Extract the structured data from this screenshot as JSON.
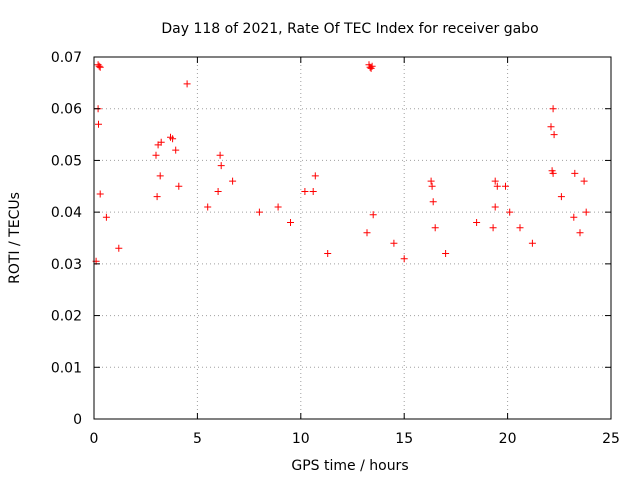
{
  "chart_data": {
    "type": "scatter",
    "title": "Day 118 of 2021, Rate Of TEC Index for receiver gabo",
    "xlabel": "GPS time / hours",
    "ylabel": "ROTI / TECUs",
    "xlim": [
      0,
      25
    ],
    "ylim": [
      0,
      0.07
    ],
    "xticks": [
      0,
      5,
      10,
      15,
      20,
      25
    ],
    "yticks": [
      0,
      0.01,
      0.02,
      0.03,
      0.04,
      0.05,
      0.06,
      0.07
    ],
    "xtick_labels": [
      "0",
      "5",
      "10",
      "15",
      "20",
      "25"
    ],
    "ytick_labels": [
      "0",
      "0.01",
      "0.02",
      "0.03",
      "0.04",
      "0.05",
      "0.06",
      "0.07"
    ],
    "grid": true,
    "marker": "+",
    "series_color": "#ff0000",
    "series": [
      {
        "name": "ROTI",
        "points": [
          [
            0.2,
            0.0685
          ],
          [
            0.25,
            0.0682
          ],
          [
            0.3,
            0.068
          ],
          [
            0.2,
            0.06
          ],
          [
            0.22,
            0.057
          ],
          [
            0.3,
            0.0435
          ],
          [
            0.1,
            0.0305
          ],
          [
            0.6,
            0.039
          ],
          [
            1.2,
            0.033
          ],
          [
            3.0,
            0.051
          ],
          [
            3.1,
            0.053
          ],
          [
            3.25,
            0.0535
          ],
          [
            3.7,
            0.0545
          ],
          [
            3.8,
            0.0542
          ],
          [
            3.95,
            0.052
          ],
          [
            4.5,
            0.0648
          ],
          [
            3.2,
            0.047
          ],
          [
            3.05,
            0.043
          ],
          [
            4.1,
            0.045
          ],
          [
            6.1,
            0.051
          ],
          [
            6.15,
            0.049
          ],
          [
            6.0,
            0.044
          ],
          [
            6.7,
            0.046
          ],
          [
            5.5,
            0.041
          ],
          [
            8.0,
            0.04
          ],
          [
            8.9,
            0.041
          ],
          [
            9.5,
            0.038
          ],
          [
            10.2,
            0.044
          ],
          [
            10.7,
            0.047
          ],
          [
            10.6,
            0.044
          ],
          [
            11.3,
            0.032
          ],
          [
            13.3,
            0.0685
          ],
          [
            13.4,
            0.0678
          ],
          [
            13.45,
            0.0682
          ],
          [
            13.35,
            0.068
          ],
          [
            13.5,
            0.0395
          ],
          [
            13.2,
            0.036
          ],
          [
            14.5,
            0.034
          ],
          [
            15.0,
            0.031
          ],
          [
            16.3,
            0.046
          ],
          [
            16.35,
            0.045
          ],
          [
            16.4,
            0.042
          ],
          [
            16.5,
            0.037
          ],
          [
            17.0,
            0.032
          ],
          [
            18.5,
            0.038
          ],
          [
            19.4,
            0.046
          ],
          [
            19.5,
            0.045
          ],
          [
            19.9,
            0.045
          ],
          [
            19.4,
            0.041
          ],
          [
            19.3,
            0.037
          ],
          [
            20.1,
            0.04
          ],
          [
            20.6,
            0.037
          ],
          [
            21.2,
            0.034
          ],
          [
            22.1,
            0.0565
          ],
          [
            22.2,
            0.06
          ],
          [
            22.25,
            0.055
          ],
          [
            22.15,
            0.048
          ],
          [
            22.2,
            0.0475
          ],
          [
            22.6,
            0.043
          ],
          [
            23.2,
            0.039
          ],
          [
            23.25,
            0.0475
          ],
          [
            23.7,
            0.046
          ],
          [
            23.8,
            0.04
          ],
          [
            23.5,
            0.036
          ]
        ]
      }
    ]
  }
}
